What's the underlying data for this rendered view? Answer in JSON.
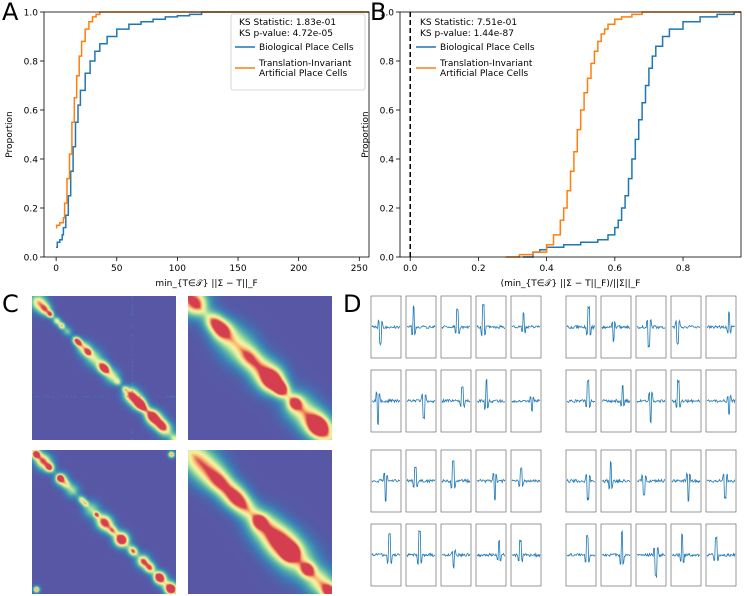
{
  "panels": {
    "a": "A",
    "b": "B",
    "c": "C",
    "d": "D"
  },
  "colors": {
    "bio": "#1f77b4",
    "art": "#ff7f0e",
    "heat_low": "#5e4fa2",
    "heat_high": "#d53e4f"
  },
  "chart_data": [
    {
      "type": "line",
      "title": "",
      "xlabel": "min_{T∈𝒯} ||Σ − T||_F",
      "ylabel": "Proportion",
      "xlim": [
        -10,
        258
      ],
      "ylim": [
        0,
        1
      ],
      "xticks": [
        "0",
        "50",
        "100",
        "150",
        "200",
        "250"
      ],
      "xtick_values": [
        0,
        50,
        100,
        150,
        200,
        250
      ],
      "yticks": [
        "0.0",
        "0.2",
        "0.4",
        "0.6",
        "0.8",
        "1.0"
      ],
      "ytick_values": [
        0,
        0.2,
        0.4,
        0.6,
        0.8,
        1.0
      ],
      "annotations": [
        "KS Statistic: 1.83e-01",
        "KS p-value: 4.72e-05"
      ],
      "legend": [
        "Biological Place Cells",
        "Translation-Invariant",
        "Artificial Place Cells"
      ],
      "series": [
        {
          "name": "Biological Place Cells",
          "x": [
            0,
            1,
            3,
            5,
            6,
            8,
            10,
            12,
            14,
            16,
            18,
            20,
            24,
            28,
            32,
            36,
            42,
            50,
            60,
            70,
            80,
            90,
            100,
            110,
            120,
            150,
            200,
            250
          ],
          "y": [
            0.04,
            0.06,
            0.07,
            0.09,
            0.12,
            0.17,
            0.25,
            0.35,
            0.45,
            0.55,
            0.62,
            0.68,
            0.75,
            0.8,
            0.84,
            0.87,
            0.9,
            0.93,
            0.95,
            0.96,
            0.97,
            0.98,
            0.985,
            0.99,
            1.0,
            1.0,
            1.0,
            1.0
          ]
        },
        {
          "name": "Translation-Invariant Artificial Place Cells",
          "x": [
            0,
            0.5,
            3,
            6,
            7,
            9,
            11,
            13,
            15,
            17,
            19,
            21,
            24,
            27,
            30,
            33,
            36,
            40
          ],
          "y": [
            0.12,
            0.13,
            0.14,
            0.16,
            0.22,
            0.32,
            0.42,
            0.55,
            0.65,
            0.74,
            0.82,
            0.88,
            0.93,
            0.96,
            0.98,
            0.99,
            1.0,
            1.0
          ]
        }
      ]
    },
    {
      "type": "line",
      "title": "",
      "xlabel": "(min_{T∈𝒯} ||Σ − T||_F)/||Σ||_F",
      "ylabel": "Proportion",
      "xlim": [
        -0.03,
        0.97
      ],
      "ylim": [
        0,
        1
      ],
      "xticks": [
        "0.0",
        "0.2",
        "0.4",
        "0.6",
        "0.8"
      ],
      "xtick_values": [
        0,
        0.2,
        0.4,
        0.6,
        0.8
      ],
      "yticks": [
        "0.0",
        "0.2",
        "0.4",
        "0.6",
        "0.8",
        "1.0"
      ],
      "ytick_values": [
        0,
        0.2,
        0.4,
        0.6,
        0.8,
        1.0
      ],
      "annotations": [
        "KS Statistic: 7.51e-01",
        "KS p-value: 1.44e-87"
      ],
      "legend": [
        "Biological Place Cells",
        "Translation-Invariant",
        "Artificial Place Cells"
      ],
      "vline_x": 0,
      "series": [
        {
          "name": "Biological Place Cells",
          "x": [
            0.33,
            0.36,
            0.38,
            0.4,
            0.45,
            0.5,
            0.55,
            0.58,
            0.6,
            0.61,
            0.62,
            0.63,
            0.64,
            0.65,
            0.66,
            0.67,
            0.68,
            0.69,
            0.7,
            0.71,
            0.72,
            0.74,
            0.76,
            0.8,
            0.85,
            0.9,
            0.95
          ],
          "y": [
            0.0,
            0.02,
            0.03,
            0.04,
            0.05,
            0.06,
            0.07,
            0.09,
            0.12,
            0.15,
            0.2,
            0.25,
            0.32,
            0.4,
            0.48,
            0.56,
            0.63,
            0.7,
            0.77,
            0.82,
            0.86,
            0.9,
            0.93,
            0.96,
            0.98,
            0.99,
            1.0
          ]
        },
        {
          "name": "Translation-Invariant Artificial Place Cells",
          "x": [
            0.28,
            0.32,
            0.36,
            0.4,
            0.42,
            0.44,
            0.45,
            0.46,
            0.47,
            0.48,
            0.49,
            0.5,
            0.51,
            0.52,
            0.53,
            0.54,
            0.55,
            0.56,
            0.57,
            0.58,
            0.6,
            0.62,
            0.65,
            0.68
          ],
          "y": [
            0.0,
            0.01,
            0.02,
            0.05,
            0.09,
            0.15,
            0.2,
            0.27,
            0.35,
            0.43,
            0.52,
            0.6,
            0.67,
            0.73,
            0.79,
            0.84,
            0.88,
            0.91,
            0.93,
            0.95,
            0.97,
            0.98,
            0.99,
            1.0
          ]
        }
      ]
    }
  ]
}
